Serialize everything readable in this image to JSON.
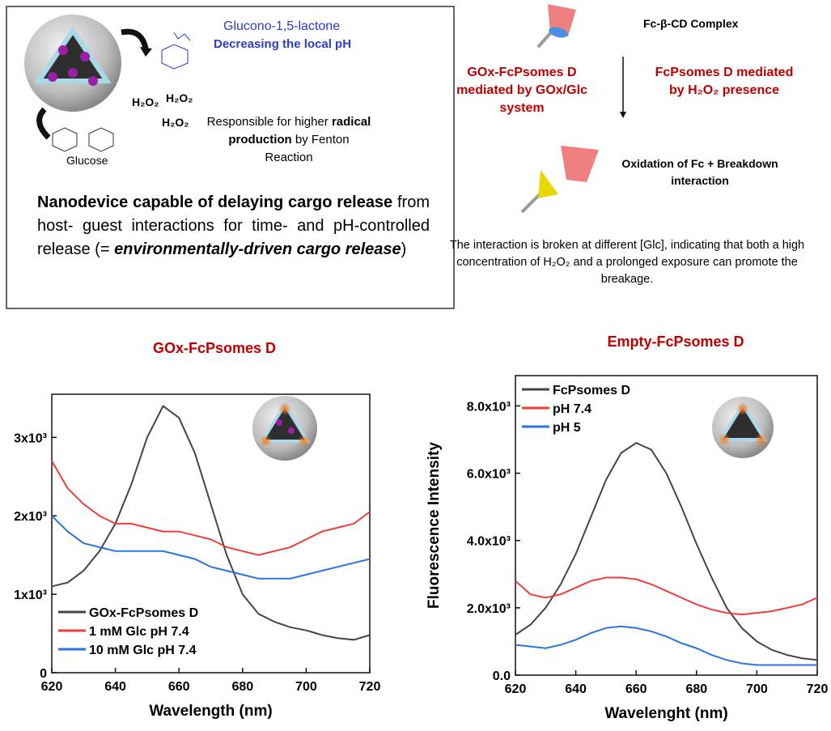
{
  "summary_box": {
    "product": "Glucono-1,5-lactone",
    "ph_effect": "Decreasing the local pH",
    "h2o2": [
      "H₂O₂",
      "H₂O₂",
      "H₂O₂"
    ],
    "radical_note": [
      "Responsible for higher ",
      "radical production",
      " by Fenton Reaction"
    ],
    "substrate": "Glucose",
    "conclusion": [
      "Nanodevice capable of delaying cargo release",
      " from host- guest interactions for time- and pH-controlled release (= ",
      "environmentally-driven cargo release",
      ")"
    ]
  },
  "scheme": {
    "complex": "Fc-β-CD Complex",
    "left": "GOx-FcPsomes D mediated by GOx/Glc system",
    "right": "FcPsomes D mediated by H₂O₂ presence",
    "result": "Oxidation of Fc + Breakdown interaction",
    "note": "The interaction is broken at different [Glc], indicating that both a high concentration of H₂O₂ and a prolonged exposure can promote the breakage."
  },
  "chart_data": [
    {
      "type": "line",
      "title": "GOx-FcPsomes D",
      "xlabel": "Wavelength (nm)",
      "x": [
        620,
        625,
        630,
        635,
        640,
        645,
        650,
        655,
        660,
        665,
        670,
        675,
        680,
        685,
        690,
        695,
        700,
        705,
        710,
        715,
        720
      ],
      "xlim": [
        620,
        720
      ],
      "xticks": [
        620,
        640,
        660,
        680,
        700,
        720
      ],
      "ylim": [
        0,
        3550
      ],
      "yticks": [
        0,
        {
          "value": 1000,
          "label": "1x10³"
        },
        {
          "value": 2000,
          "label": "2x10³"
        },
        {
          "value": 3000,
          "label": "3x10³"
        }
      ],
      "legend": "lower left",
      "series": [
        {
          "name": "GOx-FcPsomes D",
          "color": "#454545",
          "values": [
            1100,
            1150,
            1300,
            1550,
            1900,
            2400,
            3000,
            3400,
            3250,
            2800,
            2150,
            1500,
            1000,
            750,
            650,
            580,
            540,
            480,
            440,
            420,
            480
          ]
        },
        {
          "name": "1 mM Glc pH 7.4",
          "color": "#f03c3c",
          "values": [
            2700,
            2350,
            2150,
            2000,
            1900,
            1900,
            1850,
            1800,
            1800,
            1750,
            1700,
            1600,
            1550,
            1500,
            1550,
            1600,
            1700,
            1800,
            1850,
            1900,
            2050
          ]
        },
        {
          "name": "10 mM Glc pH 7.4",
          "color": "#2a74e0",
          "values": [
            2000,
            1800,
            1650,
            1600,
            1550,
            1550,
            1550,
            1550,
            1500,
            1450,
            1350,
            1300,
            1250,
            1200,
            1200,
            1200,
            1250,
            1300,
            1350,
            1400,
            1450
          ]
        }
      ]
    },
    {
      "type": "line",
      "title": "Empty-FcPsomes D",
      "xlabel": "Wavelenght (nm)",
      "ylabel": "Fluorescence Intensity",
      "x": [
        620,
        625,
        630,
        635,
        640,
        645,
        650,
        655,
        660,
        665,
        670,
        675,
        680,
        685,
        690,
        695,
        700,
        705,
        710,
        715,
        720
      ],
      "xlim": [
        620,
        720
      ],
      "xticks": [
        620,
        640,
        660,
        680,
        700,
        720
      ],
      "ylim": [
        0,
        8900
      ],
      "yticks": [
        {
          "value": 0,
          "label": "0.0"
        },
        {
          "value": 2000,
          "label": "2.0x10³"
        },
        {
          "value": 4000,
          "label": "4.0x10³"
        },
        {
          "value": 6000,
          "label": "6.0x10³"
        },
        {
          "value": 8000,
          "label": "8.0x10³"
        }
      ],
      "legend": "upper left",
      "series": [
        {
          "name": "FcPsomes D",
          "color": "#454545",
          "values": [
            1200,
            1500,
            2000,
            2700,
            3600,
            4700,
            5800,
            6600,
            6900,
            6700,
            6000,
            5000,
            3900,
            2900,
            2000,
            1400,
            1000,
            750,
            600,
            500,
            450
          ]
        },
        {
          "name": "pH 7.4",
          "color": "#f03c3c",
          "values": [
            2800,
            2400,
            2300,
            2400,
            2600,
            2800,
            2900,
            2900,
            2850,
            2700,
            2500,
            2300,
            2100,
            1950,
            1850,
            1800,
            1850,
            1900,
            2000,
            2100,
            2300
          ]
        },
        {
          "name": "pH 5",
          "color": "#2a74e0",
          "values": [
            900,
            850,
            800,
            900,
            1050,
            1250,
            1400,
            1450,
            1400,
            1300,
            1150,
            950,
            800,
            600,
            450,
            350,
            300,
            300,
            300,
            300,
            300
          ]
        }
      ]
    }
  ]
}
